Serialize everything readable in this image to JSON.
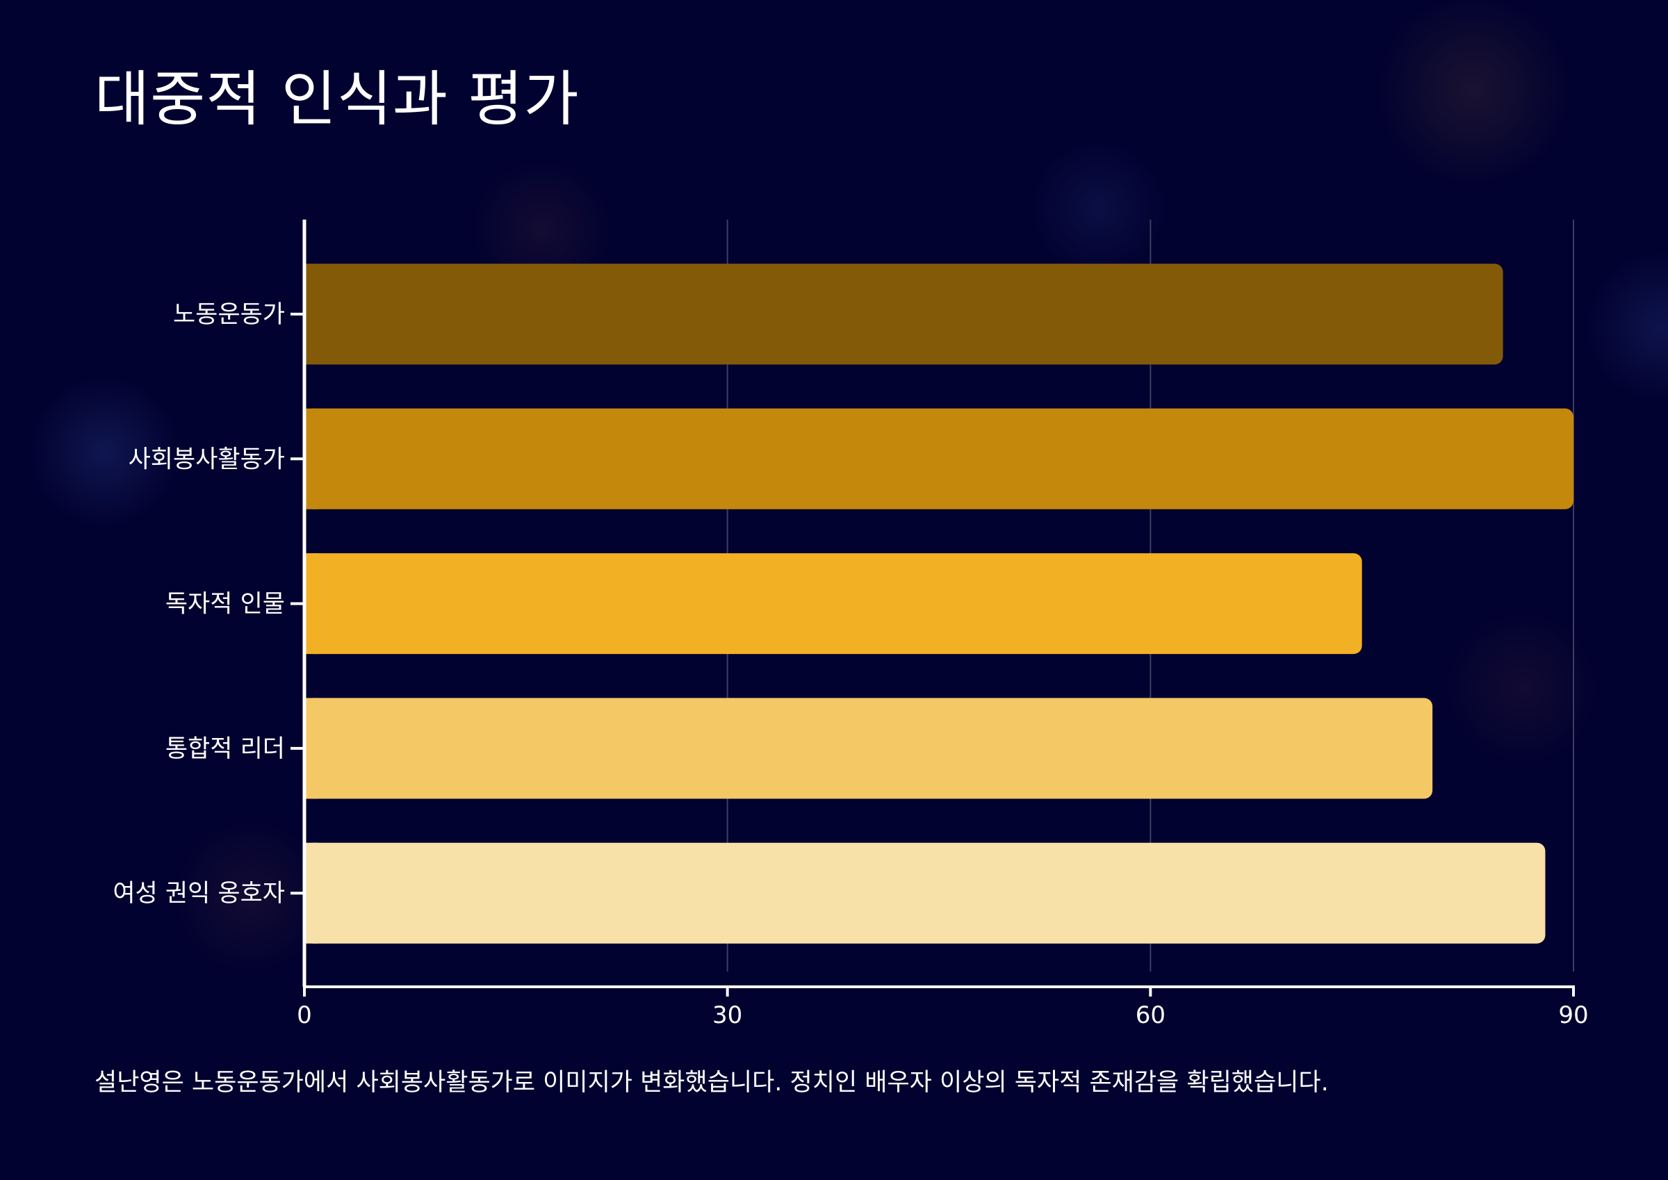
{
  "title": "대중적 인식과 평가",
  "caption": "설난영은 노동운동가에서 사회봉사활동가로 이미지가 변화했습니다. 정치인 배우자 이상의 독자적 존재감을 확립했습니다.",
  "colors": {
    "background": "#020230",
    "axis": "#ffffff",
    "grid": "#3a3e63"
  },
  "chart_data": {
    "type": "bar",
    "orientation": "horizontal",
    "categories": [
      "노동운동가",
      "사회봉사활동가",
      "독자적 인물",
      "통합적 리더",
      "여성 권익 옹호자"
    ],
    "values": [
      85,
      90,
      75,
      80,
      88
    ],
    "bar_colors": [
      "#835b08",
      "#c4880d",
      "#f2b025",
      "#f5c866",
      "#f8e0a9"
    ],
    "xlim": [
      0,
      90
    ],
    "xticks": [
      "0",
      "30",
      "60",
      "90"
    ],
    "grid": "vertical",
    "xlabel": "",
    "ylabel": ""
  }
}
